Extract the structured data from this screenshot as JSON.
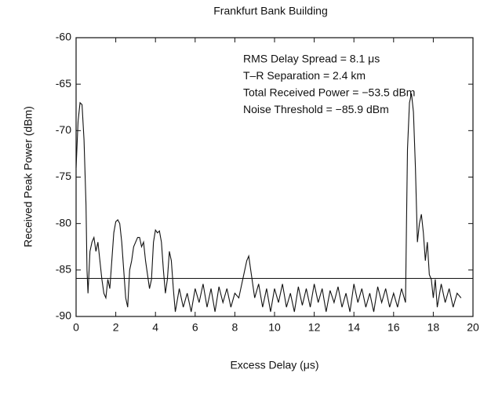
{
  "chart_data": {
    "type": "line",
    "title": "Frankfurt Bank Building",
    "x_label": "Excess Delay (μs)",
    "y_label": "Received Peak Power (dBm)",
    "annotations": [
      "RMS Delay Spread = 8.1 μs",
      "T–R Separation = 2.4 km",
      "Total Received Power = −53.5 dBm",
      "Noise Threshold = −85.9 dBm"
    ],
    "threshold": -85.9,
    "xlim": [
      0,
      20
    ],
    "xticks": [
      0,
      2,
      4,
      6,
      8,
      10,
      12,
      14,
      16,
      18,
      20
    ],
    "ylim": [
      -90,
      -60
    ],
    "yticks": [
      -90,
      -85,
      -80,
      -75,
      -70,
      -65,
      -60
    ],
    "color": "#111111",
    "x": [
      0.0,
      0.1,
      0.2,
      0.3,
      0.4,
      0.5,
      0.55,
      0.6,
      0.7,
      0.8,
      0.9,
      1.0,
      1.1,
      1.2,
      1.3,
      1.4,
      1.5,
      1.6,
      1.7,
      1.8,
      1.9,
      2.0,
      2.1,
      2.2,
      2.3,
      2.4,
      2.5,
      2.6,
      2.7,
      2.8,
      2.9,
      3.0,
      3.1,
      3.2,
      3.3,
      3.4,
      3.5,
      3.6,
      3.7,
      3.8,
      3.9,
      4.0,
      4.1,
      4.2,
      4.3,
      4.4,
      4.5,
      4.6,
      4.7,
      4.8,
      4.9,
      5.0,
      5.2,
      5.4,
      5.6,
      5.8,
      6.0,
      6.2,
      6.4,
      6.6,
      6.8,
      7.0,
      7.2,
      7.4,
      7.6,
      7.8,
      8.0,
      8.2,
      8.4,
      8.6,
      8.7,
      8.8,
      9.0,
      9.2,
      9.4,
      9.6,
      9.8,
      10.0,
      10.2,
      10.4,
      10.6,
      10.8,
      11.0,
      11.2,
      11.4,
      11.6,
      11.8,
      12.0,
      12.2,
      12.4,
      12.6,
      12.8,
      13.0,
      13.2,
      13.4,
      13.6,
      13.8,
      14.0,
      14.2,
      14.4,
      14.6,
      14.8,
      15.0,
      15.2,
      15.4,
      15.6,
      15.8,
      16.0,
      16.2,
      16.4,
      16.6,
      16.65,
      16.7,
      16.8,
      16.9,
      17.0,
      17.1,
      17.2,
      17.3,
      17.4,
      17.5,
      17.6,
      17.7,
      17.8,
      17.9,
      18.0,
      18.1,
      18.2,
      18.4,
      18.6,
      18.8,
      19.0,
      19.2,
      19.4
    ],
    "values": [
      -74,
      -69,
      -67,
      -67.2,
      -71,
      -78,
      -85,
      -87.5,
      -83,
      -82,
      -81.5,
      -83,
      -82,
      -84,
      -86,
      -87.5,
      -88,
      -86,
      -87,
      -84,
      -81,
      -79.8,
      -79.6,
      -80,
      -82,
      -85,
      -88,
      -89,
      -85,
      -84,
      -82.5,
      -82,
      -81.5,
      -81.5,
      -82.5,
      -82,
      -84,
      -85.5,
      -87,
      -86,
      -82,
      -80.7,
      -81,
      -80.8,
      -82,
      -85,
      -87.5,
      -86,
      -83,
      -84,
      -87,
      -89.5,
      -87,
      -89,
      -87.5,
      -89.5,
      -87,
      -88.5,
      -86.5,
      -89,
      -87,
      -89.5,
      -86.8,
      -88.5,
      -87,
      -89,
      -87.5,
      -88,
      -86,
      -84,
      -83.5,
      -85,
      -88,
      -86.5,
      -89,
      -87,
      -89.5,
      -87,
      -88.5,
      -86.5,
      -89,
      -87.5,
      -89.5,
      -86.8,
      -88.8,
      -87,
      -89,
      -86.5,
      -88.5,
      -87,
      -89.5,
      -87.2,
      -88.5,
      -86.8,
      -89,
      -87.5,
      -89.5,
      -86.5,
      -88.5,
      -87,
      -89,
      -87.5,
      -89.5,
      -86.8,
      -88.5,
      -87,
      -89,
      -87.5,
      -89,
      -87,
      -88.5,
      -80,
      -72,
      -67,
      -66,
      -68,
      -74,
      -82,
      -80,
      -79,
      -81,
      -84,
      -82,
      -85.5,
      -86,
      -88,
      -86,
      -89,
      -86.5,
      -88.5,
      -87,
      -89,
      -87.5,
      -88
    ]
  }
}
